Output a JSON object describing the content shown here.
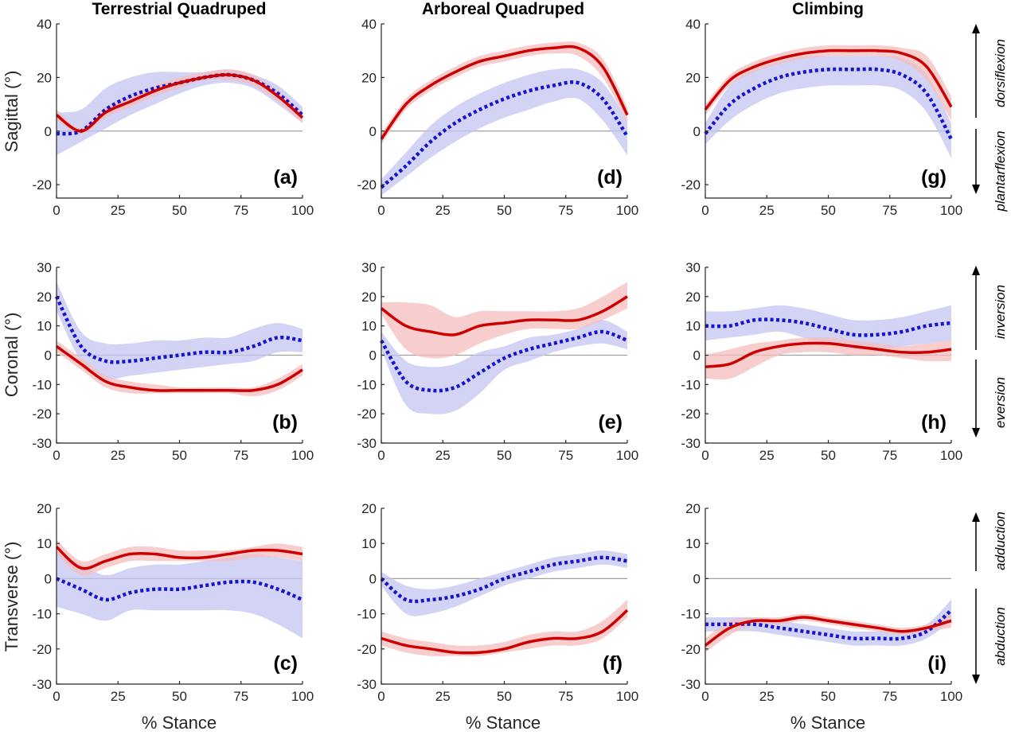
{
  "colors": {
    "red_line": "#cc0000",
    "red_band": "#f4bcbc",
    "blue_line": "#1515cc",
    "blue_band": "#c4c4f2",
    "zero_line": "#a0a0a0"
  },
  "columns": [
    "Terrestrial Quadruped",
    "Arboreal Quadruped",
    "Climbing"
  ],
  "rows": [
    "Sagittal (°)",
    "Coronal (°)",
    "Transverse (°)"
  ],
  "x_label": "% Stance",
  "annotations": {
    "sagittal_pos": "dorsiflexion",
    "sagittal_neg": "plantarflexion",
    "coronal_pos": "inversion",
    "coronal_neg": "eversion",
    "transverse_pos": "adduction",
    "transverse_neg": "abduction"
  },
  "chart_data": [
    {
      "type": "line",
      "panel": "(a)",
      "row": 0,
      "col": 0,
      "x": [
        0,
        10,
        20,
        30,
        40,
        50,
        60,
        70,
        80,
        90,
        100
      ],
      "xlim": [
        0,
        100
      ],
      "ylim": [
        -25,
        40
      ],
      "xticks": [
        0,
        25,
        50,
        75,
        100
      ],
      "yticks": [
        -20,
        0,
        20,
        40
      ],
      "series": [
        {
          "color": "red",
          "style": "solid",
          "values": [
            6,
            0,
            7,
            11,
            15,
            18,
            20,
            21,
            19,
            13,
            5
          ],
          "lower": [
            4,
            -1,
            5,
            9,
            13,
            16,
            19,
            19,
            17,
            11,
            3
          ],
          "upper": [
            8,
            1,
            9,
            13,
            17,
            20,
            22,
            23,
            21,
            15,
            7
          ]
        },
        {
          "color": "blue",
          "style": "dotted",
          "values": [
            -1,
            0,
            8,
            13,
            16,
            18,
            20,
            21,
            19,
            14,
            6
          ],
          "lower": [
            -9,
            -4,
            1,
            6,
            10,
            14,
            17,
            18,
            16,
            10,
            3
          ],
          "upper": [
            7,
            8,
            16,
            20,
            22,
            22,
            22,
            23,
            21,
            17,
            9
          ]
        }
      ]
    },
    {
      "type": "line",
      "panel": "(d)",
      "row": 0,
      "col": 1,
      "x": [
        0,
        10,
        20,
        30,
        40,
        50,
        60,
        70,
        80,
        90,
        100
      ],
      "xlim": [
        0,
        100
      ],
      "ylim": [
        -25,
        40
      ],
      "xticks": [
        0,
        25,
        50,
        75,
        100
      ],
      "yticks": [
        -20,
        0,
        20,
        40
      ],
      "series": [
        {
          "color": "red",
          "style": "solid",
          "values": [
            -3,
            10,
            17,
            22,
            26,
            28,
            30,
            31,
            31,
            24,
            6
          ],
          "lower": [
            -5,
            8,
            15,
            20,
            24,
            26,
            28,
            29,
            28,
            20,
            3
          ],
          "upper": [
            -1,
            12,
            19,
            24,
            28,
            30,
            32,
            33,
            33,
            27,
            9
          ]
        },
        {
          "color": "blue",
          "style": "dotted",
          "values": [
            -21,
            -13,
            -4,
            3,
            8,
            12,
            15,
            17,
            18,
            12,
            -2
          ],
          "lower": [
            -24,
            -17,
            -10,
            -4,
            1,
            5,
            8,
            11,
            12,
            4,
            -9
          ],
          "upper": [
            -18,
            -8,
            2,
            9,
            14,
            18,
            21,
            23,
            23,
            18,
            4
          ]
        }
      ]
    },
    {
      "type": "line",
      "panel": "(g)",
      "row": 0,
      "col": 2,
      "x": [
        0,
        10,
        20,
        30,
        40,
        50,
        60,
        70,
        80,
        90,
        100
      ],
      "xlim": [
        0,
        100
      ],
      "ylim": [
        -25,
        40
      ],
      "xticks": [
        0,
        25,
        50,
        75,
        100
      ],
      "yticks": [
        -20,
        0,
        20,
        40
      ],
      "series": [
        {
          "color": "red",
          "style": "solid",
          "values": [
            8,
            19,
            24,
            27,
            29,
            30,
            30,
            30,
            29,
            24,
            9
          ],
          "lower": [
            6,
            17,
            22,
            25,
            27,
            28,
            28,
            28,
            26,
            19,
            4
          ],
          "upper": [
            10,
            21,
            26,
            29,
            31,
            32,
            32,
            32,
            31,
            28,
            13
          ]
        },
        {
          "color": "blue",
          "style": "dotted",
          "values": [
            -1,
            10,
            16,
            20,
            22,
            23,
            23,
            23,
            21,
            14,
            -3
          ],
          "lower": [
            -5,
            4,
            10,
            14,
            16,
            17,
            17,
            17,
            15,
            7,
            -10
          ],
          "upper": [
            3,
            17,
            23,
            26,
            28,
            28,
            28,
            28,
            27,
            21,
            3
          ]
        }
      ]
    },
    {
      "type": "line",
      "panel": "(b)",
      "row": 1,
      "col": 0,
      "x": [
        0,
        10,
        20,
        30,
        40,
        50,
        60,
        70,
        80,
        90,
        100
      ],
      "xlim": [
        0,
        100
      ],
      "ylim": [
        -30,
        30
      ],
      "xticks": [
        0,
        25,
        50,
        75,
        100
      ],
      "yticks": [
        -30,
        -20,
        -10,
        0,
        10,
        20,
        30
      ],
      "series": [
        {
          "color": "red",
          "style": "solid",
          "values": [
            3,
            -3,
            -9,
            -11,
            -12,
            -12,
            -12,
            -12,
            -12,
            -10,
            -5
          ],
          "lower": [
            1,
            -5,
            -11,
            -13,
            -13,
            -13,
            -13,
            -13,
            -14,
            -12,
            -7
          ],
          "upper": [
            5,
            -1,
            -7,
            -9,
            -10,
            -11,
            -11,
            -11,
            -11,
            -8,
            -3
          ]
        },
        {
          "color": "blue",
          "style": "dotted",
          "values": [
            20,
            3,
            -2,
            -2,
            -1,
            0,
            1,
            1,
            3,
            6,
            5
          ],
          "lower": [
            15,
            -2,
            -8,
            -7,
            -6,
            -5,
            -4,
            -3,
            -2,
            1,
            1
          ],
          "upper": [
            25,
            8,
            4,
            4,
            5,
            5,
            6,
            6,
            9,
            11,
            9
          ]
        }
      ]
    },
    {
      "type": "line",
      "panel": "(e)",
      "row": 1,
      "col": 1,
      "x": [
        0,
        10,
        20,
        30,
        40,
        50,
        60,
        70,
        80,
        90,
        100
      ],
      "xlim": [
        0,
        100
      ],
      "ylim": [
        -30,
        30
      ],
      "xticks": [
        0,
        25,
        50,
        75,
        100
      ],
      "yticks": [
        -30,
        -20,
        -10,
        0,
        10,
        20,
        30
      ],
      "series": [
        {
          "color": "red",
          "style": "solid",
          "values": [
            16,
            10,
            8,
            7,
            10,
            11,
            12,
            12,
            12,
            15,
            20
          ],
          "lower": [
            14,
            2,
            -1,
            0,
            4,
            7,
            9,
            9,
            9,
            12,
            16
          ],
          "upper": [
            18,
            18,
            17,
            13,
            15,
            15,
            15,
            15,
            16,
            20,
            25
          ]
        },
        {
          "color": "blue",
          "style": "dotted",
          "values": [
            5,
            -9,
            -12,
            -11,
            -6,
            -1,
            2,
            4,
            6,
            8,
            5
          ],
          "lower": [
            2,
            -17,
            -20,
            -19,
            -13,
            -5,
            -2,
            1,
            3,
            4,
            2
          ],
          "upper": [
            8,
            -2,
            -4,
            -3,
            1,
            3,
            6,
            7,
            9,
            12,
            8
          ]
        }
      ]
    },
    {
      "type": "line",
      "panel": "(h)",
      "row": 1,
      "col": 2,
      "x": [
        0,
        10,
        20,
        30,
        40,
        50,
        60,
        70,
        80,
        90,
        100
      ],
      "xlim": [
        0,
        100
      ],
      "ylim": [
        -30,
        30
      ],
      "xticks": [
        0,
        25,
        50,
        75,
        100
      ],
      "yticks": [
        -30,
        -20,
        -10,
        0,
        10,
        20,
        30
      ],
      "series": [
        {
          "color": "red",
          "style": "solid",
          "values": [
            -4,
            -3,
            1,
            3,
            4,
            4,
            3,
            2,
            1,
            1,
            2
          ],
          "lower": [
            -8,
            -8,
            -4,
            0,
            1,
            1,
            0,
            0,
            -1,
            -2,
            -2
          ],
          "upper": [
            0,
            2,
            4,
            5,
            6,
            6,
            5,
            4,
            3,
            4,
            5
          ]
        },
        {
          "color": "blue",
          "style": "dotted",
          "values": [
            10,
            10,
            12,
            12,
            11,
            9,
            7,
            7,
            8,
            10,
            11
          ],
          "lower": [
            5,
            6,
            7,
            8,
            6,
            4,
            2,
            2,
            3,
            4,
            5
          ],
          "upper": [
            15,
            15,
            16,
            17,
            16,
            14,
            12,
            12,
            13,
            15,
            17
          ]
        }
      ]
    },
    {
      "type": "line",
      "panel": "(c)",
      "row": 2,
      "col": 0,
      "x": [
        0,
        10,
        20,
        30,
        40,
        50,
        60,
        70,
        80,
        90,
        100
      ],
      "xlim": [
        0,
        100
      ],
      "ylim": [
        -30,
        20
      ],
      "xticks": [
        0,
        25,
        50,
        75,
        100
      ],
      "yticks": [
        -30,
        -20,
        -10,
        0,
        10,
        20
      ],
      "series": [
        {
          "color": "red",
          "style": "solid",
          "values": [
            9,
            3,
            5,
            7,
            7,
            6,
            6,
            7,
            8,
            8,
            7
          ],
          "lower": [
            7,
            1,
            3,
            5,
            5,
            5,
            5,
            5,
            6,
            6,
            5
          ],
          "upper": [
            11,
            5,
            7,
            9,
            9,
            8,
            8,
            8,
            9,
            10,
            9
          ]
        },
        {
          "color": "blue",
          "style": "dotted",
          "values": [
            0,
            -3,
            -6,
            -4,
            -3,
            -3,
            -2,
            -1,
            -1,
            -3,
            -6
          ],
          "lower": [
            -8,
            -10,
            -12,
            -9,
            -9,
            -9,
            -9,
            -9,
            -10,
            -13,
            -17
          ],
          "upper": [
            8,
            4,
            1,
            3,
            4,
            4,
            5,
            6,
            7,
            6,
            5
          ]
        }
      ]
    },
    {
      "type": "line",
      "panel": "(f)",
      "row": 2,
      "col": 1,
      "x": [
        0,
        10,
        20,
        30,
        40,
        50,
        60,
        70,
        80,
        90,
        100
      ],
      "xlim": [
        0,
        100
      ],
      "ylim": [
        -30,
        20
      ],
      "xticks": [
        0,
        25,
        50,
        75,
        100
      ],
      "yticks": [
        -30,
        -20,
        -10,
        0,
        10,
        20
      ],
      "series": [
        {
          "color": "red",
          "style": "solid",
          "values": [
            -17,
            -19,
            -20,
            -21,
            -21,
            -20,
            -18,
            -17,
            -17,
            -15,
            -9
          ],
          "lower": [
            -19,
            -21,
            -22,
            -22,
            -22,
            -21,
            -20,
            -19,
            -19,
            -17,
            -11
          ],
          "upper": [
            -15,
            -17,
            -18,
            -19,
            -19,
            -18,
            -16,
            -15,
            -15,
            -12,
            -6
          ]
        },
        {
          "color": "blue",
          "style": "dotted",
          "values": [
            0,
            -6,
            -6,
            -5,
            -3,
            0,
            2,
            4,
            5,
            6,
            5
          ],
          "lower": [
            -2,
            -10,
            -10,
            -8,
            -5,
            -2,
            0,
            2,
            3,
            4,
            3
          ],
          "upper": [
            2,
            -2,
            -3,
            -2,
            0,
            2,
            4,
            6,
            7,
            8,
            7
          ]
        }
      ]
    },
    {
      "type": "line",
      "panel": "(i)",
      "row": 2,
      "col": 2,
      "x": [
        0,
        10,
        20,
        30,
        40,
        50,
        60,
        70,
        80,
        90,
        100
      ],
      "xlim": [
        0,
        100
      ],
      "ylim": [
        -30,
        20
      ],
      "xticks": [
        0,
        25,
        50,
        75,
        100
      ],
      "yticks": [
        -30,
        -20,
        -10,
        0,
        10,
        20
      ],
      "series": [
        {
          "color": "red",
          "style": "solid",
          "values": [
            -19,
            -14,
            -12,
            -12,
            -11,
            -12,
            -13,
            -14,
            -15,
            -14,
            -12
          ],
          "lower": [
            -21,
            -16,
            -13,
            -13,
            -12,
            -13,
            -14,
            -15,
            -16,
            -15,
            -14
          ],
          "upper": [
            -17,
            -12,
            -11,
            -11,
            -10,
            -11,
            -12,
            -13,
            -14,
            -13,
            -10
          ]
        },
        {
          "color": "blue",
          "style": "dotted",
          "values": [
            -13,
            -13,
            -13,
            -14,
            -15,
            -16,
            -17,
            -17,
            -17,
            -15,
            -9
          ],
          "lower": [
            -15,
            -15,
            -15,
            -16,
            -17,
            -18,
            -19,
            -19,
            -19,
            -17,
            -12
          ],
          "upper": [
            -11,
            -11,
            -11,
            -12,
            -13,
            -14,
            -15,
            -15,
            -15,
            -13,
            -6
          ]
        }
      ]
    }
  ]
}
